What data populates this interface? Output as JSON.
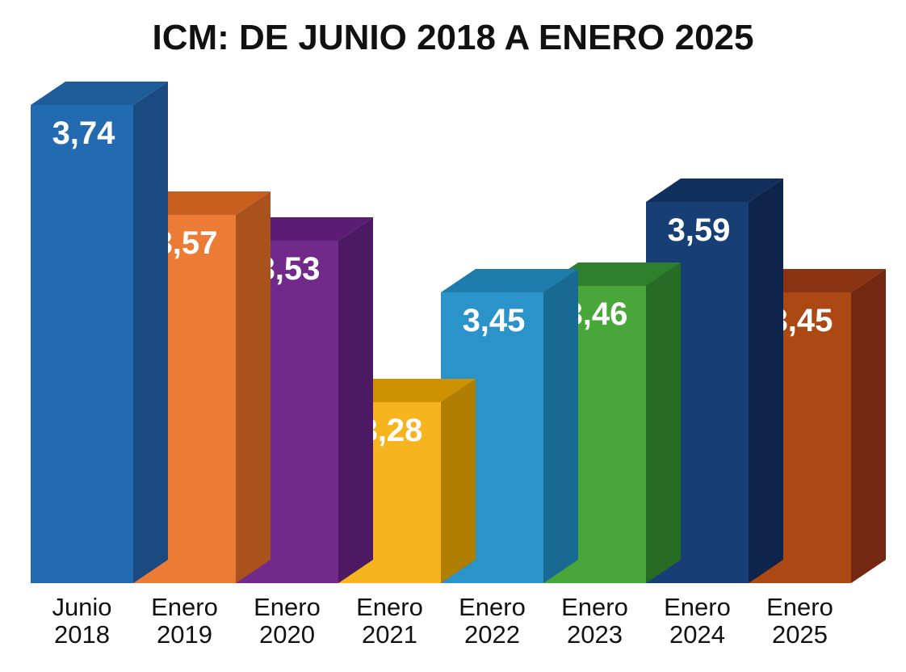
{
  "chart_data": {
    "type": "bar",
    "style": "3d",
    "title": "ICM: DE JUNIO 2018 A ENERO 2025",
    "xlabel": "",
    "ylabel": "",
    "grid": false,
    "legend": "none",
    "categories": [
      [
        "Junio",
        "2018"
      ],
      [
        "Enero",
        "2019"
      ],
      [
        "Enero",
        "2020"
      ],
      [
        "Enero",
        "2021"
      ],
      [
        "Enero",
        "2022"
      ],
      [
        "Enero",
        "2023"
      ],
      [
        "Enero",
        "2024"
      ],
      [
        "Enero",
        "2025"
      ]
    ],
    "values": [
      3.74,
      3.57,
      3.53,
      3.28,
      3.45,
      3.46,
      3.59,
      3.45
    ],
    "value_labels": [
      "3,74",
      "3,57",
      "3,53",
      "3,28",
      "3,45",
      "3,46",
      "3,59",
      "3,45"
    ],
    "colors": [
      {
        "front": "#236BB1",
        "top": "#1F5C9A",
        "side": "#1B4A80"
      },
      {
        "front": "#EC7B35",
        "top": "#C95F1E",
        "side": "#A9521B"
      },
      {
        "front": "#722A8A",
        "top": "#5C1C75",
        "side": "#4C1A62"
      },
      {
        "front": "#F6B51E",
        "top": "#CE9200",
        "side": "#B07E00"
      },
      {
        "front": "#2A93CA",
        "top": "#1D7CAB",
        "side": "#196A93"
      },
      {
        "front": "#48A63A",
        "top": "#2F7F2C",
        "side": "#276C25"
      },
      {
        "front": "#173F75",
        "top": "#112F5C",
        "side": "#0E244B"
      },
      {
        "front": "#AB4813",
        "top": "#8A3414",
        "side": "#752811"
      }
    ]
  }
}
